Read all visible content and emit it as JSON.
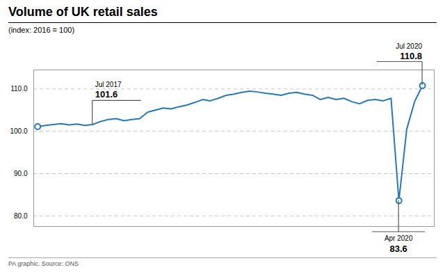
{
  "chart_data": {
    "type": "line",
    "title": "Volume of UK retail sales",
    "subtitle": "(index: 2016 = 100)",
    "caption": "PA graphic. Source: ONS",
    "color": "#2878b5",
    "x": [
      0,
      1,
      2,
      3,
      4,
      5,
      6,
      7,
      8,
      9,
      10,
      11,
      12,
      13,
      14,
      15,
      16,
      17,
      18,
      19,
      20,
      21,
      22,
      23,
      24,
      25,
      26,
      27,
      28,
      29,
      30,
      31,
      32,
      33,
      34,
      35,
      36,
      37,
      38,
      39,
      40,
      41,
      42,
      43,
      44,
      45,
      46,
      47,
      48,
      49
    ],
    "values": [
      101.1,
      101.4,
      101.6,
      101.8,
      101.5,
      101.7,
      101.4,
      101.6,
      102.3,
      102.8,
      103.0,
      102.5,
      102.8,
      103.0,
      104.5,
      105.0,
      105.5,
      105.3,
      105.8,
      106.2,
      106.8,
      107.5,
      107.2,
      107.8,
      108.5,
      108.8,
      109.2,
      109.5,
      109.3,
      109.0,
      108.8,
      108.5,
      109.0,
      109.2,
      108.8,
      108.5,
      107.5,
      108.0,
      107.5,
      107.8,
      107.0,
      106.5,
      107.3,
      107.5,
      107.2,
      107.8,
      83.6,
      100.5,
      107.0,
      110.8
    ],
    "marked_x": [
      0,
      46,
      49
    ],
    "xlim": [
      -0.5,
      50.5
    ],
    "ylim": [
      77.5,
      114.5
    ],
    "yticks": [
      {
        "value": 80,
        "label": "80.0"
      },
      {
        "value": 90,
        "label": "90.0"
      },
      {
        "value": 100,
        "label": "100.0"
      },
      {
        "value": 110,
        "label": "110.0"
      }
    ],
    "grid": true,
    "tick_labels": "y",
    "annotations": [
      {
        "text": "Jul 2017",
        "x": 7,
        "y": 101.6
      },
      {
        "text": "Apr 2020",
        "x": 46,
        "y": 83.6
      },
      {
        "text": "Jul 2020",
        "x": 49,
        "y": 110.8
      }
    ]
  }
}
